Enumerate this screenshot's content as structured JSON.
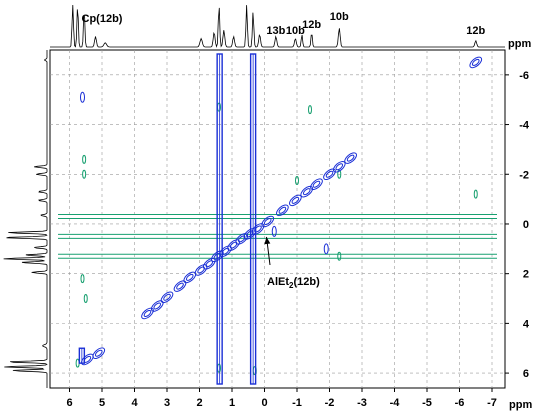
{
  "chart_data": {
    "type": "2D NMR contour plot",
    "x_axis": {
      "unit": "ppm",
      "range": [
        6.6,
        -7.4
      ],
      "reversed": true,
      "ticks": [
        6,
        5,
        4,
        3,
        2,
        1,
        0,
        -1,
        -2,
        -3,
        -4,
        -5,
        -6,
        -7
      ],
      "tick_labels": [
        "6",
        "5",
        "4",
        "3",
        "2",
        "1",
        "0",
        "-1",
        "-2",
        "-3",
        "-4",
        "-5",
        "-6",
        "-7"
      ]
    },
    "y_axis": {
      "unit": "ppm",
      "range": [
        -7.0,
        6.6
      ],
      "reversed": true,
      "position": "right",
      "ticks": [
        -6,
        -4,
        -2,
        0,
        2,
        4,
        6
      ],
      "tick_labels": [
        "-6",
        "-4",
        "-2",
        "0",
        "2",
        "4",
        "6"
      ]
    },
    "grid": "dashed",
    "top_projection_labels": [
      {
        "text": "Cp(12b)",
        "x": 5.0
      },
      {
        "text": "13b",
        "x": -0.35
      },
      {
        "text": "10b",
        "x": -0.95
      },
      {
        "text": "12b",
        "x": -1.45
      },
      {
        "text": "10b",
        "x": -2.3
      },
      {
        "text": "12b",
        "x": -6.5
      }
    ],
    "annotation": {
      "text_main": "AlEt",
      "text_sub": "2",
      "text_tail": "(12b)",
      "x": 0.0,
      "y": 0.2
    },
    "colors": {
      "blue": "#1a2fd6",
      "green": "#18a070",
      "black": "#000000"
    },
    "series": [
      {
        "name": "blue",
        "diagonal_peaks": [
          [
            5.45,
            5.45
          ],
          [
            5.1,
            5.2
          ],
          [
            3.6,
            3.6
          ],
          [
            3.3,
            3.3
          ],
          [
            3.0,
            2.95
          ],
          [
            2.6,
            2.5
          ],
          [
            2.3,
            2.15
          ],
          [
            1.95,
            1.85
          ],
          [
            1.7,
            1.6
          ],
          [
            1.45,
            1.3
          ],
          [
            1.2,
            1.1
          ],
          [
            0.95,
            0.85
          ],
          [
            0.7,
            0.6
          ],
          [
            0.45,
            0.4
          ],
          [
            0.2,
            0.2
          ],
          [
            -0.1,
            -0.1
          ],
          [
            -0.55,
            -0.55
          ],
          [
            -0.95,
            -0.95
          ],
          [
            -1.3,
            -1.3
          ],
          [
            -1.6,
            -1.6
          ],
          [
            -2.0,
            -2.0
          ],
          [
            -2.3,
            -2.3
          ],
          [
            -2.65,
            -2.65
          ],
          [
            -6.5,
            -6.5
          ]
        ],
        "vertical_streaks_x": [
          1.38,
          0.35,
          5.62
        ],
        "off_diagonal": [
          [
            5.6,
            -5.1
          ],
          [
            -0.3,
            0.3
          ],
          [
            -1.9,
            1.0
          ]
        ]
      },
      {
        "name": "green",
        "horizontal_streaks_y": [
          -0.3,
          0.5,
          1.3
        ],
        "peaks": [
          [
            1.4,
            -4.7
          ],
          [
            -1.4,
            -4.6
          ],
          [
            -6.5,
            -1.2
          ],
          [
            -1.0,
            -1.75
          ],
          [
            5.55,
            -2.0
          ],
          [
            5.55,
            -2.6
          ],
          [
            -2.3,
            -2.0
          ],
          [
            5.6,
            2.2
          ],
          [
            5.5,
            3.0
          ],
          [
            -2.3,
            1.3
          ],
          [
            0.3,
            5.9
          ],
          [
            1.4,
            5.8
          ],
          [
            5.75,
            5.6
          ]
        ]
      }
    ],
    "projections": {
      "top_peaks": [
        {
          "x": 5.9,
          "h": 1.0,
          "w": 0.03
        },
        {
          "x": 5.75,
          "h": 1.0,
          "w": 0.03
        },
        {
          "x": 5.55,
          "h": 0.9,
          "w": 0.03
        },
        {
          "x": 5.2,
          "h": 0.25,
          "w": 0.04
        },
        {
          "x": 4.9,
          "h": 0.1,
          "w": 0.06
        },
        {
          "x": 1.95,
          "h": 0.2,
          "w": 0.05
        },
        {
          "x": 1.55,
          "h": 0.35,
          "w": 0.04
        },
        {
          "x": 1.4,
          "h": 1.0,
          "w": 0.03
        },
        {
          "x": 1.25,
          "h": 0.4,
          "w": 0.04
        },
        {
          "x": 0.95,
          "h": 0.25,
          "w": 0.04
        },
        {
          "x": 0.55,
          "h": 1.0,
          "w": 0.03
        },
        {
          "x": 0.35,
          "h": 0.85,
          "w": 0.03
        },
        {
          "x": 0.15,
          "h": 0.3,
          "w": 0.04
        },
        {
          "x": -0.35,
          "h": 0.25,
          "w": 0.04
        },
        {
          "x": -0.95,
          "h": 0.2,
          "w": 0.04
        },
        {
          "x": -1.15,
          "h": 0.3,
          "w": 0.03
        },
        {
          "x": -1.45,
          "h": 0.35,
          "w": 0.03
        },
        {
          "x": -2.3,
          "h": 0.45,
          "w": 0.04
        },
        {
          "x": -6.5,
          "h": 0.15,
          "w": 0.04
        }
      ],
      "left_peaks": [
        {
          "y": -6.6,
          "h": 0.06,
          "w": 0.04
        },
        {
          "y": -2.3,
          "h": 0.3,
          "w": 0.04
        },
        {
          "y": -2.0,
          "h": 0.25,
          "w": 0.04
        },
        {
          "y": -1.3,
          "h": 0.2,
          "w": 0.04
        },
        {
          "y": -0.95,
          "h": 0.2,
          "w": 0.04
        },
        {
          "y": -0.35,
          "h": 0.15,
          "w": 0.04
        },
        {
          "y": 0.35,
          "h": 0.9,
          "w": 0.04
        },
        {
          "y": 0.55,
          "h": 1.0,
          "w": 0.04
        },
        {
          "y": 0.95,
          "h": 0.3,
          "w": 0.04
        },
        {
          "y": 1.25,
          "h": 0.5,
          "w": 0.04
        },
        {
          "y": 1.4,
          "h": 1.0,
          "w": 0.04
        },
        {
          "y": 1.55,
          "h": 0.6,
          "w": 0.04
        },
        {
          "y": 1.95,
          "h": 0.35,
          "w": 0.04
        },
        {
          "y": 4.9,
          "h": 0.1,
          "w": 0.06
        },
        {
          "y": 5.55,
          "h": 0.9,
          "w": 0.04
        },
        {
          "y": 5.75,
          "h": 1.0,
          "w": 0.04
        },
        {
          "y": 5.9,
          "h": 0.8,
          "w": 0.04
        }
      ]
    }
  }
}
